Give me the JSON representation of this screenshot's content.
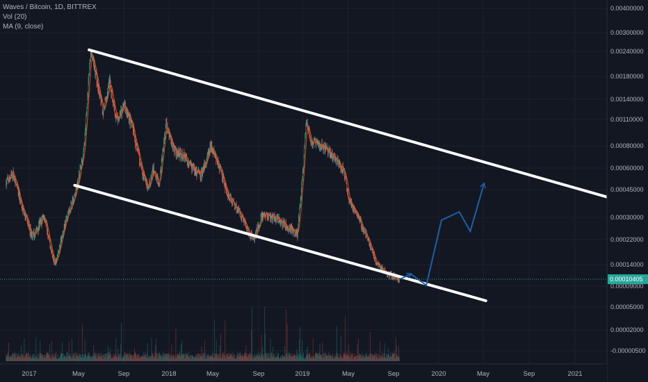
{
  "legend": {
    "title": "Waves / Bitcoin, 1D, BITTREX",
    "volume": "Vol (20)",
    "ma": "MA (9, close)"
  },
  "colors": {
    "background": "#131722",
    "grid": "#1e222d",
    "axis_text": "#b2b5be",
    "candle_up": "#26a69a",
    "candle_down": "#ef5350",
    "ma_line": "#e65100",
    "channel_line": "#ffffff",
    "projection_arrow": "#1e5fa8",
    "last_price": "#26a69a"
  },
  "chart_data": {
    "type": "candlestick",
    "y_scale": "log",
    "y_ticks": [
      "0.00400000",
      "0.00300000",
      "0.00240000",
      "0.00180000",
      "0.00140000",
      "0.00110000",
      "0.00080000",
      "0.00060000",
      "0.00045000",
      "0.00030000",
      "0.00022000",
      "0.00014000",
      "0.00009000",
      "0.00005000",
      "0.00002000",
      "-0.00000500"
    ],
    "x_ticks": [
      "2017",
      "May",
      "Sep",
      "2018",
      "May",
      "Sep",
      "2019",
      "May",
      "Sep",
      "2020",
      "May",
      "Sep",
      "2021"
    ],
    "last_price": "0.00010405",
    "price_path": [
      [
        "2016-11-01",
        0.0005
      ],
      [
        "2016-11-20",
        0.00056
      ],
      [
        "2016-12-15",
        0.00034
      ],
      [
        "2017-01-10",
        0.00023
      ],
      [
        "2017-02-10",
        0.00031
      ],
      [
        "2017-03-10",
        0.00014
      ],
      [
        "2017-04-05",
        0.00028
      ],
      [
        "2017-05-05",
        0.00045
      ],
      [
        "2017-05-25",
        0.00075
      ],
      [
        "2017-06-12",
        0.0024
      ],
      [
        "2017-06-25",
        0.0019
      ],
      [
        "2017-07-15",
        0.0012
      ],
      [
        "2017-08-01",
        0.0017
      ],
      [
        "2017-08-20",
        0.0011
      ],
      [
        "2017-09-10",
        0.0013
      ],
      [
        "2017-10-01",
        0.001
      ],
      [
        "2017-10-20",
        0.00065
      ],
      [
        "2017-11-10",
        0.00045
      ],
      [
        "2017-11-25",
        0.0006
      ],
      [
        "2017-12-10",
        0.0005
      ],
      [
        "2017-12-28",
        0.00105
      ],
      [
        "2018-01-20",
        0.00075
      ],
      [
        "2018-02-15",
        0.0007
      ],
      [
        "2018-03-10",
        0.0006
      ],
      [
        "2018-04-01",
        0.00055
      ],
      [
        "2018-04-25",
        0.0008
      ],
      [
        "2018-05-15",
        0.00065
      ],
      [
        "2018-06-10",
        0.00042
      ],
      [
        "2018-07-10",
        0.00033
      ],
      [
        "2018-08-15",
        0.00022
      ],
      [
        "2018-09-10",
        0.00032
      ],
      [
        "2018-10-10",
        0.0003
      ],
      [
        "2018-11-10",
        0.00027
      ],
      [
        "2018-12-10",
        0.00024
      ],
      [
        "2018-12-25",
        0.0006
      ],
      [
        "2019-01-02",
        0.0011
      ],
      [
        "2019-01-15",
        0.00085
      ],
      [
        "2019-02-15",
        0.0008
      ],
      [
        "2019-03-15",
        0.0007
      ],
      [
        "2019-04-10",
        0.0006
      ],
      [
        "2019-04-25",
        0.0004
      ],
      [
        "2019-05-20",
        0.0003
      ],
      [
        "2019-06-15",
        0.00022
      ],
      [
        "2019-07-05",
        0.00015
      ],
      [
        "2019-08-01",
        0.00012
      ],
      [
        "2019-08-25",
        0.00011
      ],
      [
        "2019-09-05",
        0.00010405
      ]
    ],
    "channel_lines": [
      {
        "name": "upper",
        "points": [
          [
            "2017-06-08",
            0.00245
          ],
          [
            "2021-05-31",
            0.00036
          ]
        ]
      },
      {
        "name": "lower",
        "points": [
          [
            "2017-05-01",
            0.00048
          ],
          [
            "2020-04-20",
            6.2e-05
          ]
        ]
      }
    ],
    "projection_path": [
      [
        "2019-09-08",
        0.000107
      ],
      [
        "2019-10-05",
        0.000118
      ],
      [
        "2019-11-15",
        9.2e-05
      ],
      [
        "2019-12-25",
        0.00029
      ],
      [
        "2020-02-10",
        0.00033
      ],
      [
        "2020-03-10",
        0.00025
      ],
      [
        "2020-04-15",
        0.00049
      ]
    ]
  }
}
